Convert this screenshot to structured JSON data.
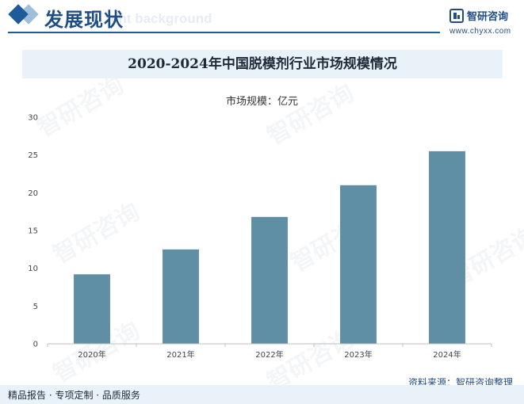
{
  "header": {
    "section_title": "发展现状",
    "section_watermark": "ent background",
    "brand_name": "智研咨询",
    "brand_url": "www.chyxx.com",
    "brand_color": "#1f4e86"
  },
  "unit_label": "市场规模：亿元",
  "watermark_text": "智研咨询",
  "footer": {
    "source": "资料来源：智研咨询整理",
    "tagline": "精品报告 · 专项定制 · 品质服务"
  },
  "chart_data": {
    "type": "bar",
    "title": "2020-2024年中国脱模剂行业市场规模情况",
    "categories": [
      "2020年",
      "2021年",
      "2022年",
      "2023年",
      "2024年"
    ],
    "values": [
      9.2,
      12.5,
      16.8,
      21.0,
      25.5
    ],
    "ylim": [
      0,
      30
    ],
    "yticks": [
      0,
      5,
      10,
      15,
      20,
      25,
      30
    ],
    "bar_color": "#5f8fa4",
    "grid": false,
    "legend": "none"
  }
}
